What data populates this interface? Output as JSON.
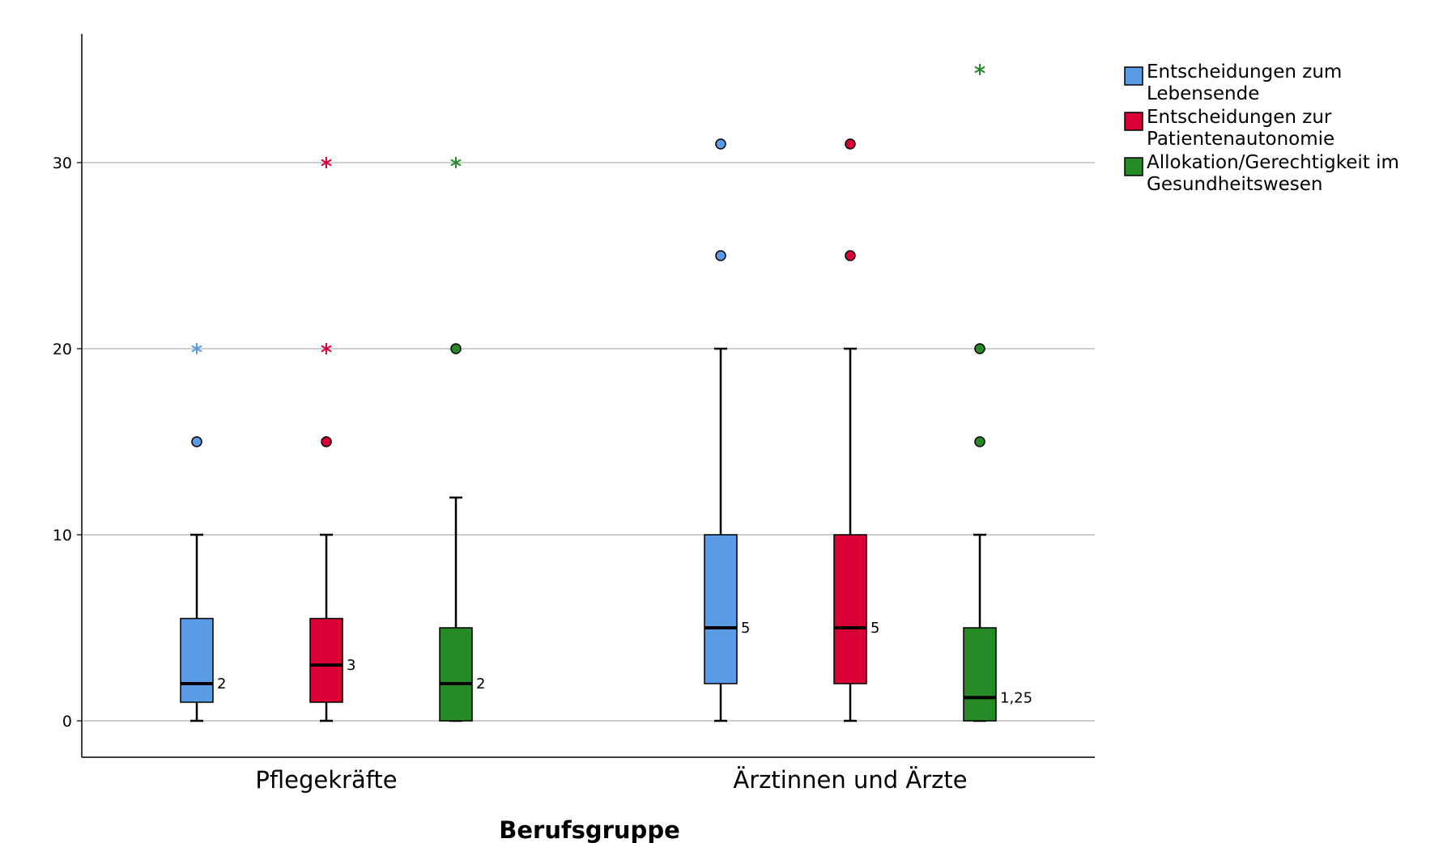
{
  "chart_data": {
    "type": "boxplot",
    "xlabel": "Berufsgruppe",
    "ylabel": "",
    "ylim": [
      -2,
      37
    ],
    "yticks": [
      0,
      10,
      20,
      30
    ],
    "grid": true,
    "legend_position": "right",
    "categories": [
      "Pflegekräfte",
      "Ärztinnen und Ärzte"
    ],
    "series": [
      {
        "name_lines": [
          "Entscheidungen zum",
          "Lebensende"
        ],
        "color": "#5b9be6",
        "boxes": [
          {
            "min": 0,
            "q1": 1,
            "median": 2,
            "q3": 5.5,
            "max": 10,
            "median_label": "2",
            "outliers": [
              15
            ],
            "extremes": [
              20
            ]
          },
          {
            "min": 0,
            "q1": 2,
            "median": 5,
            "q3": 10,
            "max": 20,
            "median_label": "5",
            "outliers": [
              25,
              31
            ],
            "extremes": []
          }
        ]
      },
      {
        "name_lines": [
          "Entscheidungen zur",
          "Patientenautonomie"
        ],
        "color": "#d90035",
        "boxes": [
          {
            "min": 0,
            "q1": 1,
            "median": 3,
            "q3": 5.5,
            "max": 10,
            "median_label": "3",
            "outliers": [
              15
            ],
            "extremes": [
              20,
              30
            ]
          },
          {
            "min": 0,
            "q1": 2,
            "median": 5,
            "q3": 10,
            "max": 20,
            "median_label": "5",
            "outliers": [
              25,
              31
            ],
            "extremes": []
          }
        ]
      },
      {
        "name_lines": [
          "Allokation/Gerechtigkeit im",
          "Gesundheitswesen"
        ],
        "color": "#268a26",
        "boxes": [
          {
            "min": 0,
            "q1": 0,
            "median": 2,
            "q3": 5,
            "max": 12,
            "median_label": "2",
            "outliers": [
              20
            ],
            "extremes": [
              30
            ]
          },
          {
            "min": 0,
            "q1": 0,
            "median": 1.25,
            "q3": 5,
            "max": 10,
            "median_label": "1,25",
            "outliers": [
              15,
              20
            ],
            "extremes": [
              35
            ]
          }
        ]
      }
    ]
  }
}
